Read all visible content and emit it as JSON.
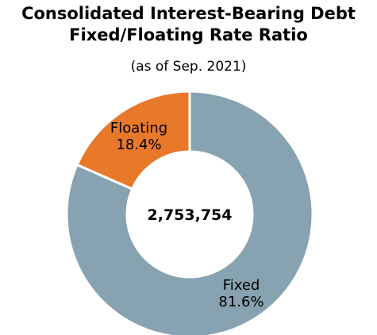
{
  "chart_data": {
    "type": "pie",
    "title_lines": [
      "Consolidated Interest-Bearing Debt",
      "Fixed/Floating Rate Ratio"
    ],
    "subtitle": "(as of Sep. 2021)",
    "center_label": "2,753,754",
    "slices": [
      {
        "label": "Floating",
        "value_label": "18.4%",
        "value": 18.4,
        "color": "#e8792b"
      },
      {
        "label": "Fixed",
        "value_label": "81.6%",
        "value": 81.6,
        "color": "#87a2b0"
      }
    ]
  }
}
